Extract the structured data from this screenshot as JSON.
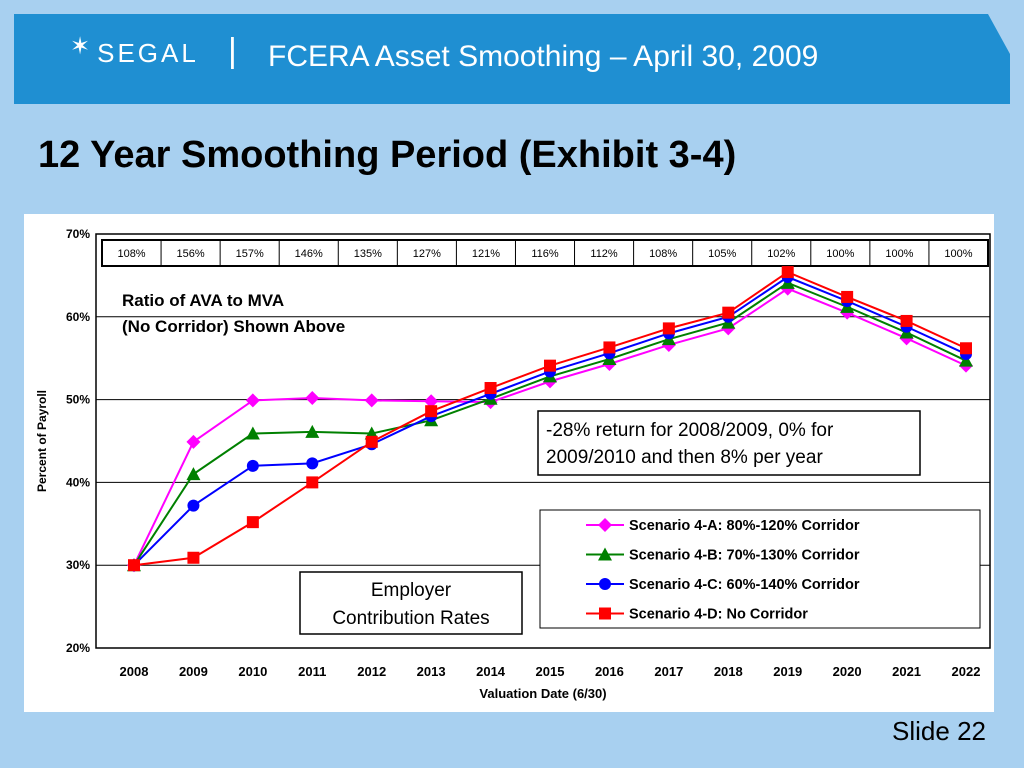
{
  "header": {
    "logo_text": "SEGAL",
    "logo_separator": "|",
    "title": "FCERA Asset Smoothing – April 30, 2009"
  },
  "page_title": "12 Year Smoothing Period (Exhibit 3-4)",
  "slide_label": "Slide 22",
  "colors": {
    "header_blue": "#1f8fd2",
    "background": "#a8d0f0",
    "scenario_a": "#ff00ff",
    "scenario_b": "#008000",
    "scenario_c": "#0000ff",
    "scenario_d": "#ff0000"
  },
  "chart_data": {
    "type": "line",
    "xlabel": "Valuation Date (6/30)",
    "ylabel": "Percent of Payroll",
    "ylim": [
      0.2,
      0.7
    ],
    "yticks": [
      "20%",
      "30%",
      "40%",
      "50%",
      "60%",
      "70%"
    ],
    "grid": "horizontal",
    "categories": [
      "2008",
      "2009",
      "2010",
      "2011",
      "2012",
      "2013",
      "2014",
      "2015",
      "2016",
      "2017",
      "2018",
      "2019",
      "2020",
      "2021",
      "2022"
    ],
    "ratio_row": [
      "108%",
      "156%",
      "157%",
      "146%",
      "135%",
      "127%",
      "121%",
      "116%",
      "112%",
      "108%",
      "105%",
      "102%",
      "100%",
      "100%",
      "100%"
    ],
    "annotations": {
      "ratio_note_line1": "Ratio of AVA to MVA",
      "ratio_note_line2": "(No Corridor) Shown Above",
      "return_note_line1": "-28% return for 2008/2009, 0% for",
      "return_note_line2": "2009/2010 and then 8% per year",
      "employer_line1": "Employer",
      "employer_line2": "Contribution Rates"
    },
    "legend_position": "bottom-right",
    "series": [
      {
        "name": "Scenario 4-A: 80%-120% Corridor",
        "marker": "diamond",
        "color": "#ff00ff",
        "values": [
          0.3,
          0.449,
          0.499,
          0.502,
          0.499,
          0.498,
          0.497,
          0.522,
          0.543,
          0.566,
          0.586,
          0.634,
          0.605,
          0.574,
          0.541
        ]
      },
      {
        "name": "Scenario 4-B: 70%-130% Corridor",
        "marker": "triangle",
        "color": "#008000",
        "values": [
          0.3,
          0.41,
          0.459,
          0.461,
          0.459,
          0.475,
          0.501,
          0.528,
          0.549,
          0.573,
          0.593,
          0.641,
          0.612,
          0.581,
          0.547
        ]
      },
      {
        "name": "Scenario 4-C: 60%-140% Corridor",
        "marker": "circle",
        "color": "#0000ff",
        "values": [
          0.3,
          0.372,
          0.42,
          0.423,
          0.446,
          0.48,
          0.507,
          0.534,
          0.556,
          0.58,
          0.6,
          0.648,
          0.619,
          0.588,
          0.555
        ]
      },
      {
        "name": "Scenario 4-D: No Corridor",
        "marker": "square",
        "color": "#ff0000",
        "values": [
          0.3,
          0.309,
          0.352,
          0.4,
          0.449,
          0.486,
          0.514,
          0.541,
          0.563,
          0.586,
          0.605,
          0.654,
          0.624,
          0.595,
          0.562
        ]
      }
    ]
  }
}
